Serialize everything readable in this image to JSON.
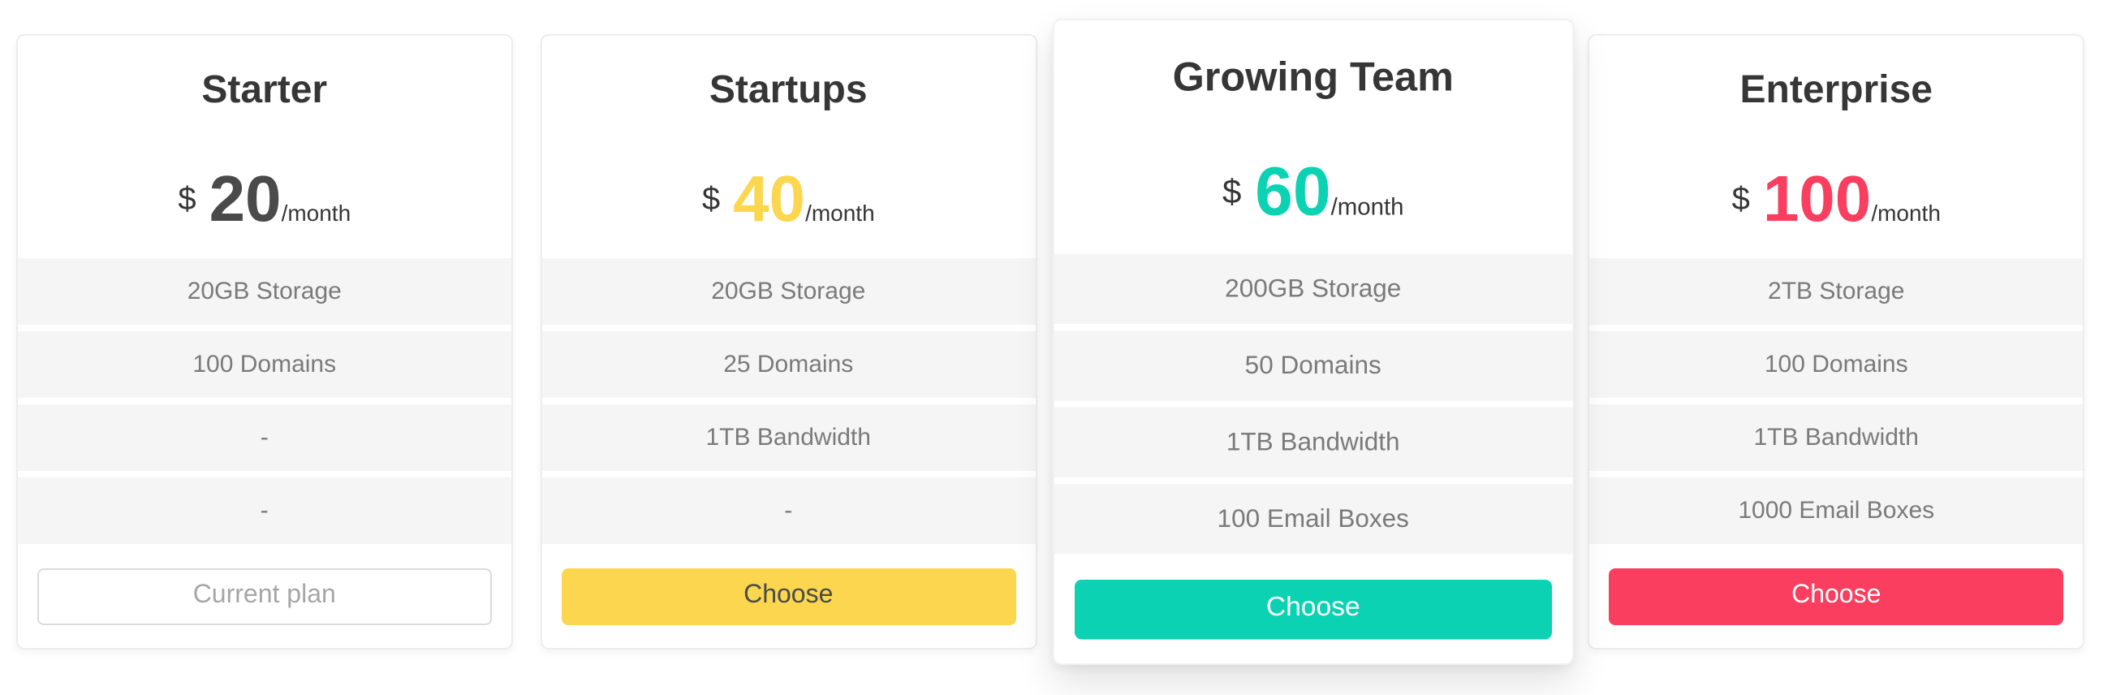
{
  "page": {
    "background": "#ffffff"
  },
  "plans": [
    {
      "name": "Starter",
      "currency": "$",
      "amount": "20",
      "period": "/month",
      "price_color": "#4a4a4a",
      "features": [
        "20GB Storage",
        "100 Domains",
        "-",
        "-"
      ],
      "active": false,
      "button": {
        "label": "Current plan",
        "type": "outline",
        "bg": "#ffffff",
        "text_color": "#a6a6a6",
        "border_color": "#dbdbdb"
      }
    },
    {
      "name": "Startups",
      "currency": "$",
      "amount": "40",
      "period": "/month",
      "price_color": "#fbd64e",
      "features": [
        "20GB Storage",
        "25 Domains",
        "1TB Bandwidth",
        "-"
      ],
      "active": false,
      "button": {
        "label": "Choose",
        "type": "solid",
        "bg": "#fbd64e",
        "text_color": "#4a4a4a",
        "border_color": "#fbd64e"
      }
    },
    {
      "name": "Growing Team",
      "currency": "$",
      "amount": "60",
      "period": "/month",
      "price_color": "#0bd2b2",
      "features": [
        "200GB Storage",
        "50 Domains",
        "1TB Bandwidth",
        "100 Email Boxes"
      ],
      "active": true,
      "button": {
        "label": "Choose",
        "type": "solid",
        "bg": "#0bd2b2",
        "text_color": "#ffffff",
        "border_color": "#0bd2b2"
      }
    },
    {
      "name": "Enterprise",
      "currency": "$",
      "amount": "100",
      "period": "/month",
      "price_color": "#f93e5f",
      "features": [
        "2TB Storage",
        "100 Domains",
        "1TB Bandwidth",
        "1000 Email Boxes"
      ],
      "active": false,
      "button": {
        "label": "Choose",
        "type": "solid",
        "bg": "#f93e5f",
        "text_color": "#ffffff",
        "border_color": "#f93e5f"
      }
    }
  ]
}
